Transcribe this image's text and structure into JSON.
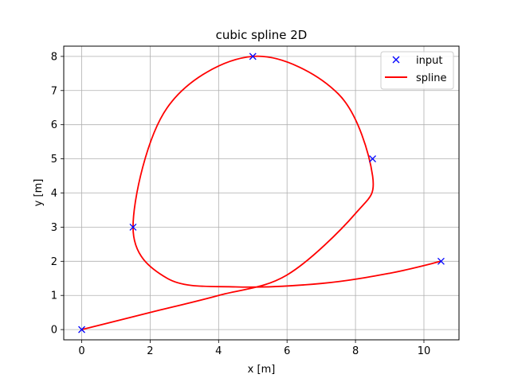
{
  "chart_data": {
    "type": "line",
    "title": "cubic spline 2D",
    "xlabel": "x [m]",
    "ylabel": "y [m]",
    "xlim": [
      -0.525,
      11.025
    ],
    "ylim": [
      -0.3,
      8.3
    ],
    "xticks": [
      0,
      2,
      4,
      6,
      8,
      10
    ],
    "yticks": [
      0,
      1,
      2,
      3,
      4,
      5,
      6,
      7,
      8
    ],
    "grid": true,
    "legend_position": "top-right",
    "series": [
      {
        "name": "input",
        "style": "markers",
        "marker": "x",
        "color": "#0000ff",
        "x": [
          0.0,
          1.5,
          5.0,
          8.5,
          10.5
        ],
        "y": [
          0.0,
          3.0,
          8.0,
          5.0,
          2.0
        ]
      },
      {
        "name": "spline",
        "style": "line",
        "color": "#ff0000",
        "x": [
          0.0,
          2.0,
          4.0,
          6.0,
          8.0,
          8.5,
          7.5,
          5.0,
          2.5,
          1.5,
          2.5,
          4.5,
          7.0,
          9.0,
          10.5
        ],
        "y": [
          0.0,
          0.5,
          1.0,
          1.6,
          3.4,
          4.5,
          6.9,
          8.0,
          6.5,
          3.0,
          1.5,
          1.25,
          1.35,
          1.65,
          2.0
        ]
      }
    ]
  }
}
